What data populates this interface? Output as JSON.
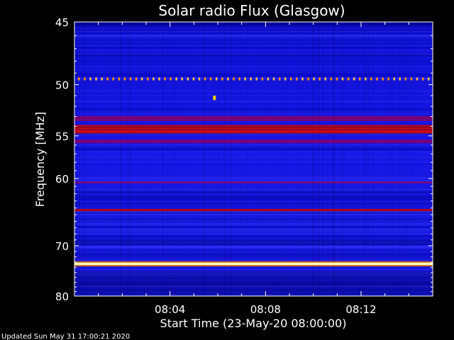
{
  "chart_data": {
    "type": "heatmap",
    "title": "Solar radio Flux (Glasgow)",
    "xlabel": "Start Time (23-May-20 08:00:00)",
    "ylabel": "Frequency [MHz]",
    "x_unit": "minutes",
    "xlim": [
      0,
      15
    ],
    "x_tick_values": [
      4,
      8,
      12
    ],
    "x_tick_labels": [
      "08:04",
      "08:08",
      "08:12"
    ],
    "ylim": [
      45,
      80
    ],
    "y_tick_values": [
      45,
      50,
      55,
      60,
      70,
      80
    ],
    "y_tick_labels": [
      "45",
      "50",
      "55",
      "60",
      "70",
      "80"
    ],
    "colormap": [
      "#000000",
      "#0000c8",
      "#2020ff",
      "#b00000",
      "#ff2020",
      "#ffff80",
      "#ffffff"
    ],
    "bands": [
      {
        "frequency": 45.2,
        "width": 0.35,
        "level": 0.15
      },
      {
        "frequency": 49.5,
        "width": 0.25,
        "level": 0.75,
        "dashed": true
      },
      {
        "frequency": 51.2,
        "width": 0.4,
        "level": 0.9,
        "spot_minute": 5.8
      },
      {
        "frequency": 53.2,
        "width": 0.5,
        "level": 0.55
      },
      {
        "frequency": 54.3,
        "width": 0.9,
        "level": 0.72
      },
      {
        "frequency": 55.6,
        "width": 0.4,
        "level": 0.5
      },
      {
        "frequency": 60.5,
        "width": 0.25,
        "level": 0.45
      },
      {
        "frequency": 64.3,
        "width": 0.35,
        "level": 0.7
      },
      {
        "frequency": 73.3,
        "width": 0.45,
        "level": 1.0
      }
    ]
  },
  "footer": {
    "updated": "Updated Sun May 31 17:00:21 2020"
  }
}
